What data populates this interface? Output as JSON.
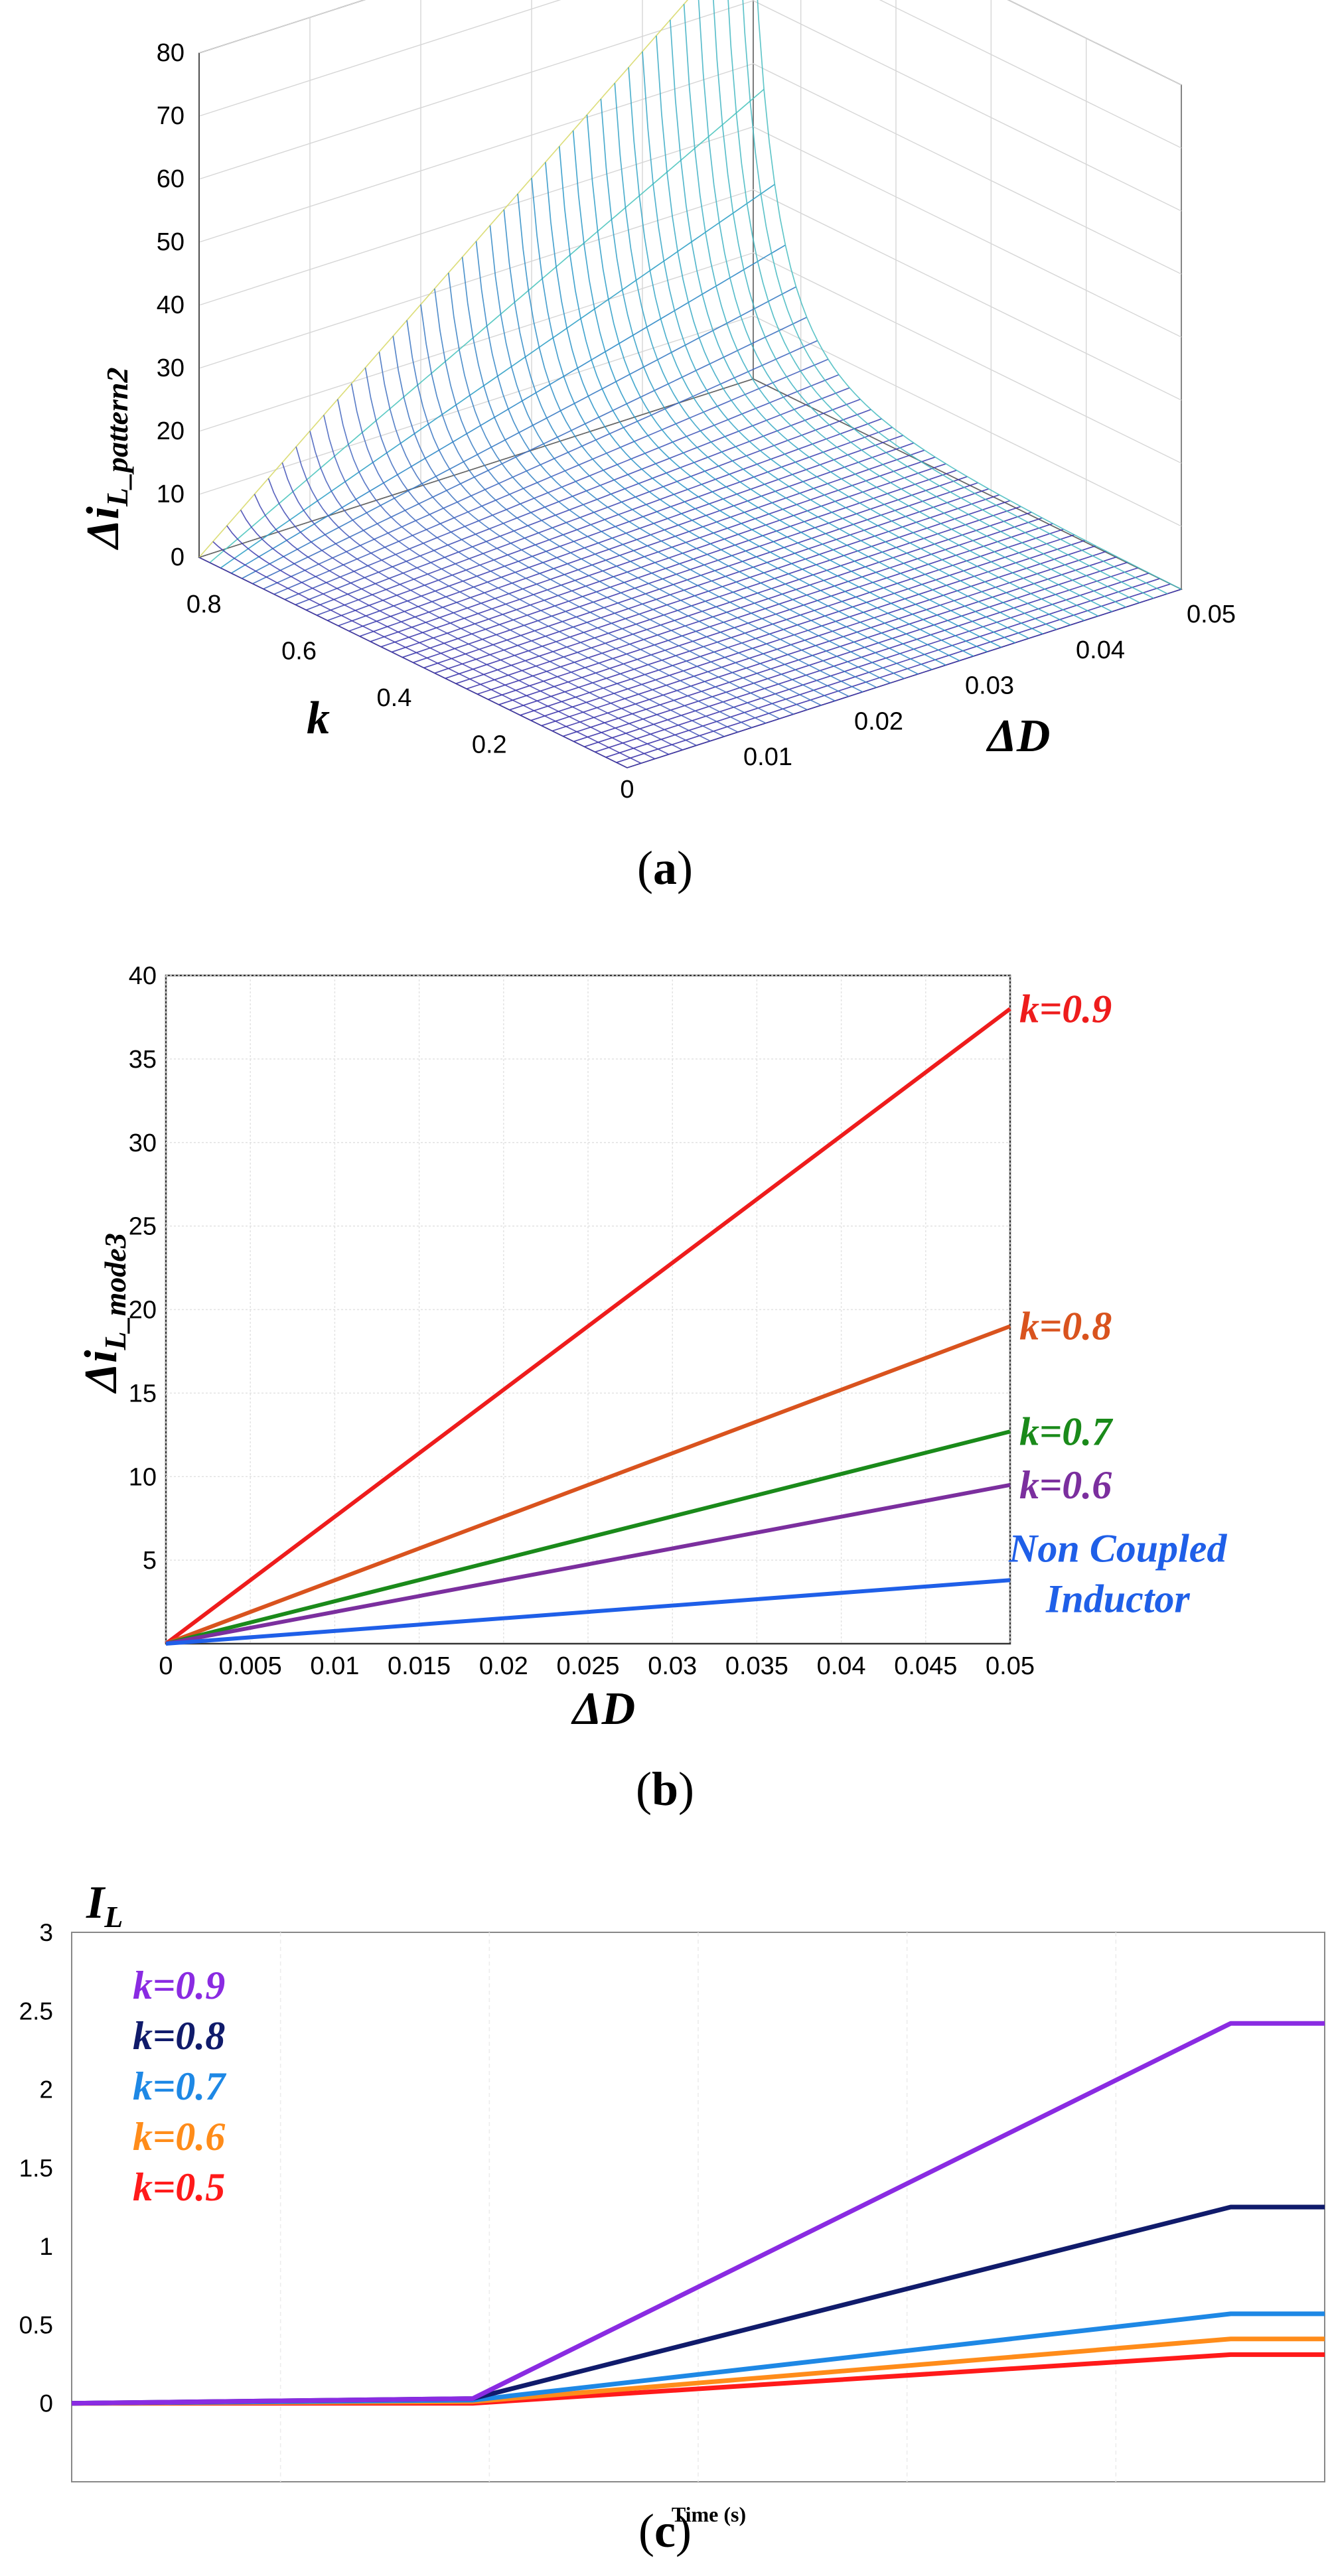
{
  "chart_data": [
    {
      "panel": "a",
      "type": "surface",
      "panel_label": "a",
      "zlabel": "Δi",
      "zlabel_sub": "L_pattern2",
      "xlabel": "ΔD",
      "ylabel": "k",
      "x_ticks": [
        "0",
        "0.01",
        "0.02",
        "0.03",
        "0.04",
        "0.05"
      ],
      "y_ticks": [
        "0.2",
        "0.4",
        "0.6",
        "0.8"
      ],
      "z_ticks": [
        "0",
        "10",
        "20",
        "30",
        "40",
        "50",
        "60",
        "70",
        "80"
      ],
      "xlim": [
        0,
        0.05
      ],
      "ylim": [
        0,
        0.9
      ],
      "zlim": [
        0,
        80
      ],
      "surface": "Δi = ΔD·k / (1−k)^2 scaled; peak ≈ 80 at ΔD=0.05, k=0.9"
    },
    {
      "panel": "b",
      "type": "line",
      "panel_label": "b",
      "ylabel": "Δi",
      "ylabel_sub": "L_mode3",
      "xlabel": "ΔD",
      "xlim": [
        0,
        0.05
      ],
      "ylim": [
        0,
        40
      ],
      "x_ticks": [
        "0",
        "0.005",
        "0.01",
        "0.015",
        "0.02",
        "0.025",
        "0.03",
        "0.035",
        "0.04",
        "0.045",
        "0.05"
      ],
      "y_ticks": [
        "5",
        "10",
        "15",
        "20",
        "25",
        "30",
        "35",
        "40"
      ],
      "series": [
        {
          "name": "k=0.9",
          "color": "#ee1c1c",
          "x": [
            0,
            0.05
          ],
          "y": [
            0,
            38
          ]
        },
        {
          "name": "k=0.8",
          "color": "#d9531e",
          "x": [
            0,
            0.05
          ],
          "y": [
            0,
            19
          ]
        },
        {
          "name": "k=0.7",
          "color": "#1a8a1a",
          "x": [
            0,
            0.05
          ],
          "y": [
            0,
            12.7
          ]
        },
        {
          "name": "k=0.6",
          "color": "#7b2f9e",
          "x": [
            0,
            0.05
          ],
          "y": [
            0,
            9.5
          ]
        },
        {
          "name": "Non Coupled",
          "name2": "Inductor",
          "color": "#1f5fe8",
          "x": [
            0,
            0.05
          ],
          "y": [
            0,
            3.8
          ]
        }
      ]
    },
    {
      "panel": "c",
      "type": "line",
      "panel_label": "c",
      "ylabel": "I",
      "ylabel_sub": "L",
      "xlabel": "Time (s)",
      "xlim": [
        0,
        1
      ],
      "ylim": [
        -0.5,
        3
      ],
      "y_ticks": [
        "0",
        "0.5",
        "1",
        "1.5",
        "2",
        "2.5",
        "3"
      ],
      "series": [
        {
          "name": "k=0.9",
          "color": "#8a2be2",
          "x": [
            0,
            0.32,
            0.925,
            1
          ],
          "y": [
            0,
            0.03,
            2.42,
            2.42
          ]
        },
        {
          "name": "k=0.8",
          "color": "#101b6b",
          "x": [
            0,
            0.32,
            0.925,
            1
          ],
          "y": [
            0,
            0.03,
            1.25,
            1.25
          ]
        },
        {
          "name": "k=0.7",
          "color": "#1e88e5",
          "x": [
            0,
            0.32,
            0.925,
            1
          ],
          "y": [
            0,
            0.02,
            0.57,
            0.57
          ]
        },
        {
          "name": "k=0.6",
          "color": "#ff8c1a",
          "x": [
            0,
            0.32,
            0.925,
            1
          ],
          "y": [
            0,
            0.01,
            0.41,
            0.41
          ]
        },
        {
          "name": "k=0.5",
          "color": "#ff1a1a",
          "x": [
            0,
            0.32,
            0.925,
            1
          ],
          "y": [
            0,
            0.0,
            0.31,
            0.31
          ]
        }
      ]
    }
  ]
}
